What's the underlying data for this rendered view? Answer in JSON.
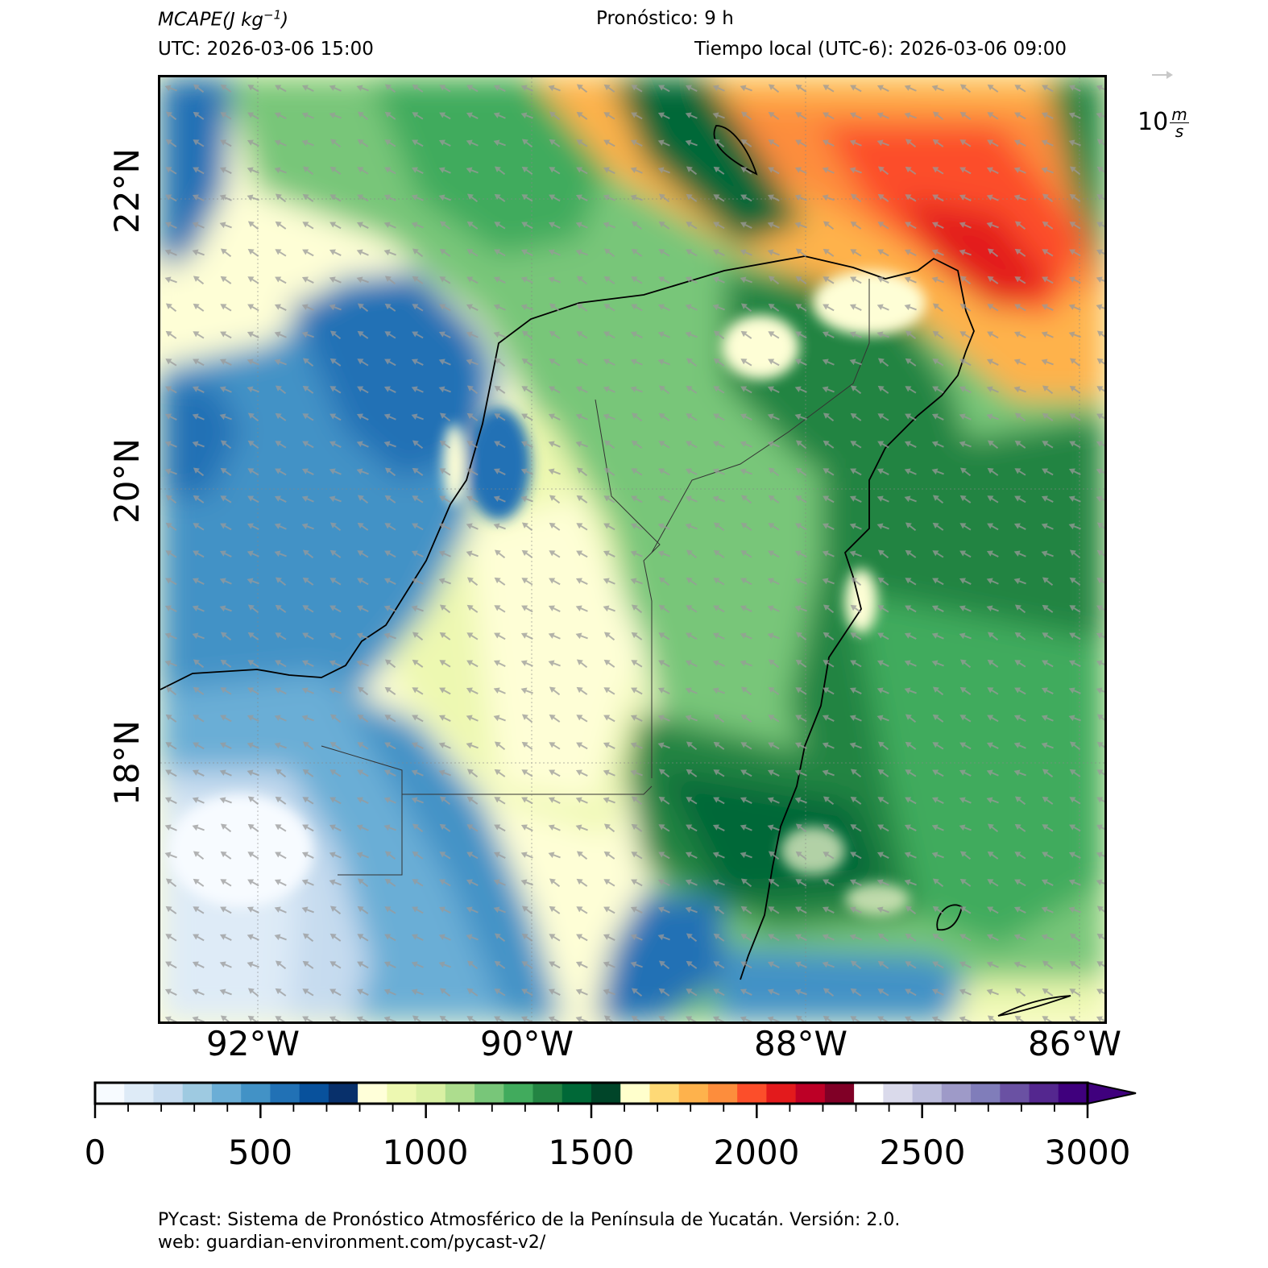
{
  "header": {
    "variable_label": "MCAPE",
    "variable_units": "(J kg",
    "variable_units_exp": "−1",
    "variable_units_close": ")",
    "forecast_label": "Pronóstico: 9 h",
    "utc_label": "UTC:  2026-03-06 15:00",
    "local_label": "Tiempo local (UTC-6): 2026-03-06 09:00"
  },
  "map": {
    "x_ticks": [
      "92°W",
      "90°W",
      "88°W",
      "86°W"
    ],
    "y_ticks": [
      "22°N",
      "20°N",
      "18°N"
    ],
    "wind_reference": {
      "value": "10",
      "unit_num": "m",
      "unit_den": "s"
    }
  },
  "colorbar": {
    "ticks": [
      "0",
      "500",
      "1000",
      "1500",
      "2000",
      "2500",
      "3000"
    ],
    "colors": [
      "#f7fbff",
      "#deebf7",
      "#c6dbef",
      "#9ecae1",
      "#6baed6",
      "#4292c6",
      "#2171b5",
      "#08519c",
      "#08306b",
      "#ffffd9",
      "#edf8b1",
      "#d9f0a3",
      "#addd8e",
      "#78c679",
      "#41ab5d",
      "#238443",
      "#006837",
      "#004529",
      "#ffffcc",
      "#fed976",
      "#feb24c",
      "#fd8d3c",
      "#fc4e2a",
      "#e31a1c",
      "#bd0026",
      "#800026",
      "#ffffff",
      "#dadaeb",
      "#bcbddc",
      "#9e9ac8",
      "#807dba",
      "#6a51a3",
      "#54278f",
      "#3f007d"
    ],
    "extend": "max"
  },
  "footer": {
    "line1": "PYcast: Sistema de Pronóstico Atmosférico de la Península de Yucatán. Versión: 2.0.",
    "line2": "web: guardian-environment.com/pycast-v2/"
  }
}
